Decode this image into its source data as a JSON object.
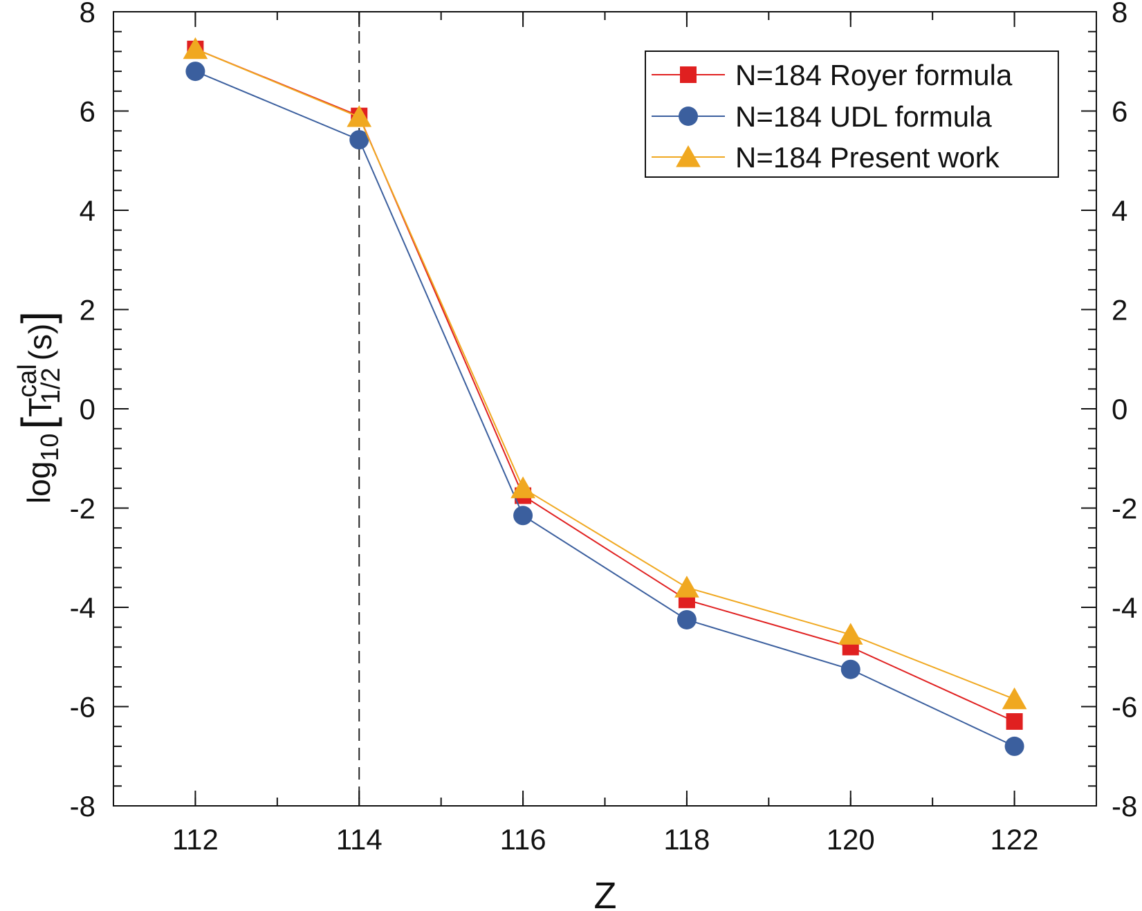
{
  "chart_data": {
    "type": "line",
    "xlabel": "Z",
    "ylabel": {
      "prefix": "log",
      "prefix_subscript": "10",
      "open_bracket": "[",
      "symbol": "T",
      "superscript": "cal",
      "subscript": "1/2",
      "unit": "(s)",
      "close_bracket": "]"
    },
    "xlim": [
      111,
      123
    ],
    "ylim": [
      -8,
      8
    ],
    "x_ticks": [
      112,
      114,
      116,
      118,
      120,
      122
    ],
    "x_tick_labels": [
      "112",
      "114",
      "116",
      "118",
      "120",
      "122"
    ],
    "x_minor_step": 1,
    "y_ticks": [
      -8,
      -6,
      -4,
      -2,
      0,
      2,
      4,
      6,
      8
    ],
    "y_tick_labels": [
      "-8",
      "-6",
      "-4",
      "-2",
      "0",
      "2",
      "4",
      "6",
      "8"
    ],
    "y_minor_step": 0.4,
    "right_axis_labels": true,
    "grid": false,
    "legend_position": "top-right",
    "reference_line": {
      "x": 114,
      "style": "dashed",
      "color": "#222222"
    },
    "x": [
      112,
      114,
      116,
      118,
      120,
      122
    ],
    "series": [
      {
        "name": "N=184 Royer formula",
        "marker": "square",
        "color": "#e02020",
        "values": [
          7.25,
          5.9,
          -1.75,
          -3.85,
          -4.8,
          -6.3
        ]
      },
      {
        "name": "N=184 UDL formula",
        "marker": "circle",
        "color": "#3b5f9e",
        "values": [
          6.8,
          5.42,
          -2.15,
          -4.25,
          -5.25,
          -6.8
        ]
      },
      {
        "name": "N=184 Present work",
        "marker": "triangle",
        "color": "#f0a820",
        "values": [
          7.25,
          5.88,
          -1.6,
          -3.6,
          -4.55,
          -5.85
        ]
      }
    ]
  }
}
